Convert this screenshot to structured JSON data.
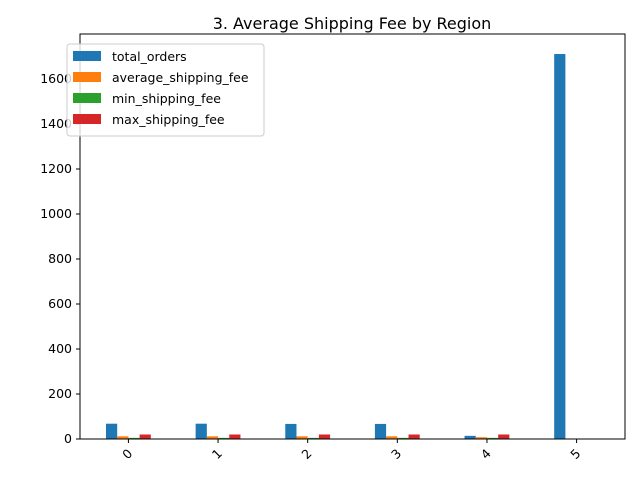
{
  "chart_data": {
    "type": "bar",
    "title": "3. Average Shipping Fee by Region",
    "xlabel": "",
    "ylabel": "",
    "categories": [
      "0",
      "1",
      "2",
      "3",
      "4",
      "5"
    ],
    "ylim": [
      0,
      1800
    ],
    "yticks": [
      0,
      200,
      400,
      600,
      800,
      1000,
      1200,
      1400,
      1600
    ],
    "legend_position": "top-left",
    "grid": false,
    "series": [
      {
        "name": "total_orders",
        "color": "#1f77b4",
        "values": [
          68,
          68,
          67,
          67,
          14,
          1711
        ]
      },
      {
        "name": "average_shipping_fee",
        "color": "#ff7f0e",
        "values": [
          12,
          12,
          12,
          12,
          8,
          0
        ]
      },
      {
        "name": "min_shipping_fee",
        "color": "#2ca02c",
        "values": [
          5,
          5,
          5,
          5,
          5,
          0
        ]
      },
      {
        "name": "max_shipping_fee",
        "color": "#d62728",
        "values": [
          20,
          20,
          20,
          20,
          20,
          0
        ]
      }
    ]
  }
}
